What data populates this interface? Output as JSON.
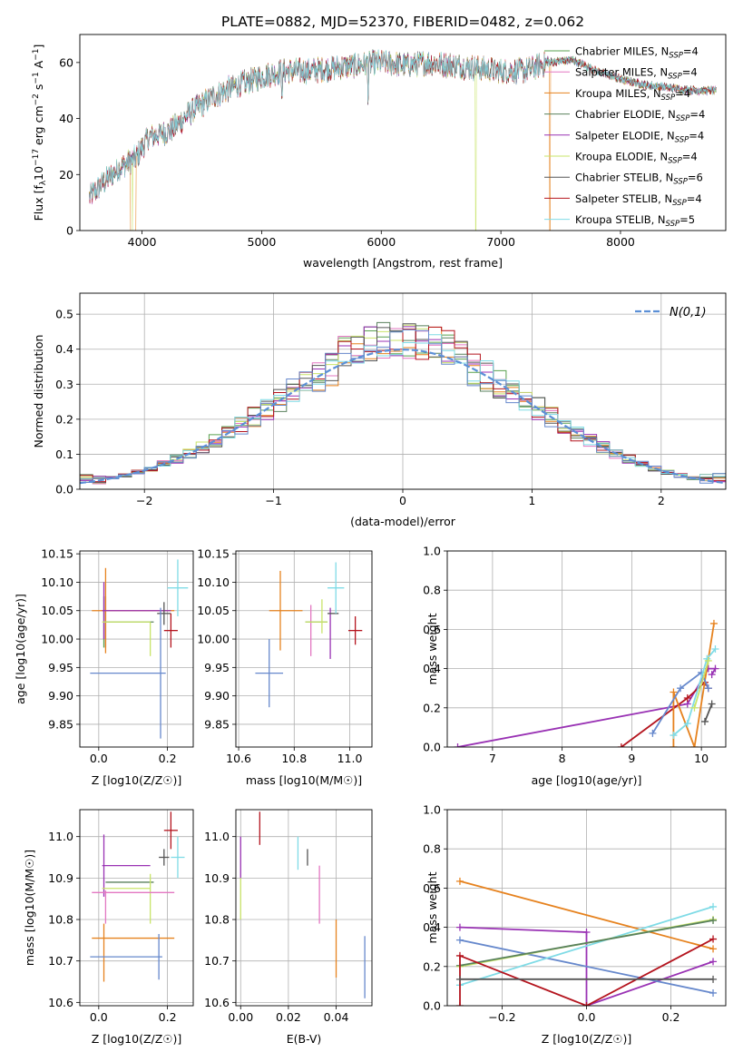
{
  "figure": {
    "title": "PLATE=0882, MJD=52370, FIBERID=0482, z=0.062"
  },
  "chart_data": [
    {
      "id": "spectrum",
      "type": "line",
      "xlabel": "wavelength [Angstrom, rest frame]",
      "ylabel": "Flux [f_λ 10^-17 erg cm^-2 s^-1 A^-1]",
      "xlim": [
        3480,
        8880
      ],
      "ylim": [
        0,
        70
      ],
      "xticks": [
        4000,
        5000,
        6000,
        7000,
        8000
      ],
      "yticks": [
        0,
        20,
        40,
        60
      ],
      "grid": false,
      "legend_position": "top-right",
      "continuum": {
        "x": [
          3560,
          3700,
          3800,
          3950,
          4050,
          4250,
          4400,
          4600,
          4800,
          5000,
          5200,
          5400,
          5600,
          5800,
          6000,
          6200,
          6400,
          6600,
          6800,
          7000,
          7200,
          7400,
          7600,
          7800,
          8000,
          8200,
          8400,
          8600,
          8800
        ],
        "y": [
          12,
          18,
          22,
          26,
          33,
          36,
          42,
          48,
          52,
          55,
          57,
          57,
          58,
          59,
          60,
          59,
          60,
          59,
          58,
          57,
          57,
          60,
          61,
          57,
          54,
          52,
          51,
          50,
          50
        ]
      },
      "series": [
        {
          "name": "Chabrier MILES, N_SSP=4",
          "color": "#59a14f"
        },
        {
          "name": "Salpeter MILES, N_SSP=4",
          "color": "#e377c2"
        },
        {
          "name": "Kroupa MILES, N_SSP=4",
          "color": "#e6821e"
        },
        {
          "name": "Chabrier ELODIE, N_SSP=4",
          "color": "#59815c"
        },
        {
          "name": "Salpeter ELODIE, N_SSP=4",
          "color": "#9932b4"
        },
        {
          "name": "Kroupa ELODIE, N_SSP=4",
          "color": "#c9e46a"
        },
        {
          "name": "Chabrier STELIB, N_SSP=6",
          "color": "#555555"
        },
        {
          "name": "Salpeter STELIB, N_SSP=4",
          "color": "#b4141e"
        },
        {
          "name": "Kroupa STELIB, N_SSP=5",
          "color": "#7fdbe6"
        }
      ]
    },
    {
      "id": "residuals",
      "type": "histogram",
      "xlabel": "(data-model)/error",
      "ylabel": "Normed distribution",
      "xlim": [
        -2.5,
        2.5
      ],
      "ylim": [
        0,
        0.56
      ],
      "xticks": [
        -2,
        -1,
        0,
        1,
        2
      ],
      "yticks": [
        0.0,
        0.1,
        0.2,
        0.3,
        0.4,
        0.5
      ],
      "grid": true,
      "bin_width": 0.1,
      "legend": {
        "label": "N(0,1)",
        "position": "top-right"
      },
      "reference_curve": "gaussian N(0,1)"
    },
    {
      "id": "age-vs-Z",
      "type": "scatter",
      "xlabel": "Z [log10(Z/Z☉)]",
      "ylabel": "age  [log10(age/yr)]",
      "xlim": [
        -0.055,
        0.275
      ],
      "ylim": [
        9.81,
        10.155
      ],
      "xticks": [
        0.0,
        0.2
      ],
      "yticks": [
        9.85,
        9.9,
        9.95,
        10.0,
        10.05,
        10.1,
        10.15
      ],
      "grid": true,
      "points": [
        {
          "x": 0.015,
          "xerr": 0.0,
          "y": 10.03,
          "yerr": 0.045,
          "color": "#59a14f"
        },
        {
          "x": 0.02,
          "xerr": 0.0,
          "y": 10.03,
          "yerr": 0.045,
          "color": "#e377c2"
        },
        {
          "x": 0.1,
          "xerr": 0.12,
          "y": 10.05,
          "yerr": 0.0,
          "color": "#e6821e"
        },
        {
          "x": 0.02,
          "xerr": 0.0,
          "y": 10.05,
          "yerr": 0.075,
          "color": "#e6821e"
        },
        {
          "x": 0.09,
          "xerr": 0.07,
          "y": 10.03,
          "yerr": 0.0,
          "color": "#59815c"
        },
        {
          "x": 0.11,
          "xerr": 0.1,
          "y": 10.05,
          "yerr": 0.0,
          "color": "#9932b4"
        },
        {
          "x": 0.015,
          "xerr": 0.0,
          "y": 10.05,
          "yerr": 0.05,
          "color": "#9932b4"
        },
        {
          "x": 0.08,
          "xerr": 0.07,
          "y": 10.03,
          "yerr": 0.0,
          "color": "#c9e46a"
        },
        {
          "x": 0.15,
          "xerr": 0.0,
          "y": 10.0,
          "yerr": 0.03,
          "color": "#c9e46a"
        },
        {
          "x": 0.19,
          "xerr": 0.02,
          "y": 10.045,
          "yerr": 0.02,
          "color": "#555555"
        },
        {
          "x": 0.21,
          "xerr": 0.02,
          "y": 10.015,
          "yerr": 0.03,
          "color": "#b4141e"
        },
        {
          "x": 0.23,
          "xerr": 0.03,
          "y": 10.09,
          "yerr": 0.05,
          "color": "#7fdbe6"
        },
        {
          "x": 0.085,
          "xerr": 0.11,
          "y": 9.94,
          "yerr": 0.0,
          "color": "#6688cc"
        },
        {
          "x": 0.18,
          "xerr": 0.0,
          "y": 9.94,
          "yerr": 0.115,
          "color": "#6688cc"
        }
      ]
    },
    {
      "id": "age-vs-mass",
      "type": "scatter",
      "xlabel": "mass [log10(M/M☉)]",
      "ylabel": "",
      "xlim": [
        10.59,
        11.08
      ],
      "ylim": [
        9.81,
        10.155
      ],
      "xticks": [
        10.6,
        10.8,
        11.0
      ],
      "yticks": [
        9.85,
        9.9,
        9.95,
        10.0,
        10.05,
        10.1,
        10.15
      ],
      "grid": true,
      "points": [
        {
          "x": 10.77,
          "xerr": 0.06,
          "y": 10.05,
          "yerr": 0.0,
          "color": "#e6821e"
        },
        {
          "x": 10.75,
          "xerr": 0.0,
          "y": 10.05,
          "yerr": 0.07,
          "color": "#e6821e"
        },
        {
          "x": 10.86,
          "xerr": 0.0,
          "y": 10.015,
          "yerr": 0.045,
          "color": "#e377c2"
        },
        {
          "x": 10.88,
          "xerr": 0.04,
          "y": 10.03,
          "yerr": 0.0,
          "color": "#59815c"
        },
        {
          "x": 10.88,
          "xerr": 0.04,
          "y": 10.03,
          "yerr": 0.0,
          "color": "#c9e46a"
        },
        {
          "x": 10.9,
          "xerr": 0.0,
          "y": 10.04,
          "yerr": 0.03,
          "color": "#c9e46a"
        },
        {
          "x": 10.93,
          "xerr": 0.0,
          "y": 10.01,
          "yerr": 0.045,
          "color": "#9932b4"
        },
        {
          "x": 10.94,
          "xerr": 0.02,
          "y": 10.045,
          "yerr": 0.0,
          "color": "#555555"
        },
        {
          "x": 10.95,
          "xerr": 0.03,
          "y": 10.09,
          "yerr": 0.045,
          "color": "#7fdbe6"
        },
        {
          "x": 11.02,
          "xerr": 0.025,
          "y": 10.015,
          "yerr": 0.025,
          "color": "#b4141e"
        },
        {
          "x": 10.71,
          "xerr": 0.05,
          "y": 9.94,
          "yerr": 0.0,
          "color": "#6688cc"
        },
        {
          "x": 10.71,
          "xerr": 0.0,
          "y": 9.94,
          "yerr": 0.06,
          "color": "#6688cc"
        }
      ]
    },
    {
      "id": "weight-vs-age",
      "type": "line",
      "xlabel": "age  [log10(age/yr)]",
      "ylabel": "mass weight",
      "xlim": [
        6.35,
        10.35
      ],
      "ylim": [
        0,
        1
      ],
      "xticks": [
        7,
        8,
        9,
        10
      ],
      "yticks": [
        0.0,
        0.2,
        0.4,
        0.6,
        0.8,
        1.0
      ],
      "grid": true,
      "series": [
        {
          "color": "#9932b4",
          "points": [
            [
              6.5,
              0.0
            ],
            [
              9.8,
              0.22
            ],
            [
              10.1,
              0.4
            ],
            [
              10.2,
              0.4
            ],
            [
              10.15,
              0.37
            ]
          ]
        },
        {
          "color": "#b4141e",
          "points": [
            [
              8.85,
              0.0
            ],
            [
              9.8,
              0.25
            ],
            [
              10.05,
              0.33
            ],
            [
              10.1,
              0.3
            ]
          ]
        },
        {
          "color": "#e6821e",
          "points": [
            [
              9.6,
              0.0
            ],
            [
              9.6,
              0.28
            ],
            [
              9.9,
              0.0
            ],
            [
              10.18,
              0.63
            ]
          ]
        },
        {
          "color": "#6688cc",
          "points": [
            [
              9.3,
              0.07
            ],
            [
              9.7,
              0.3
            ],
            [
              10.0,
              0.38
            ],
            [
              10.1,
              0.3
            ]
          ]
        },
        {
          "color": "#7fdbe6",
          "points": [
            [
              9.6,
              0.06
            ],
            [
              9.8,
              0.12
            ],
            [
              10.08,
              0.45
            ],
            [
              10.2,
              0.5
            ]
          ]
        },
        {
          "color": "#c9e46a",
          "points": [
            [
              9.9,
              0.2
            ],
            [
              10.1,
              0.44
            ]
          ]
        },
        {
          "color": "#555555",
          "points": [
            [
              10.05,
              0.13
            ],
            [
              10.15,
              0.22
            ]
          ]
        }
      ]
    },
    {
      "id": "mass-vs-Z",
      "type": "scatter",
      "xlabel": "Z [log10(Z/Z☉)]",
      "ylabel": "mass [log10(M/M☉)]",
      "xlim": [
        -0.055,
        0.275
      ],
      "ylim": [
        10.592,
        11.065
      ],
      "xticks": [
        0.0,
        0.2
      ],
      "yticks": [
        10.6,
        10.7,
        10.8,
        10.9,
        11.0
      ],
      "grid": true,
      "points": [
        {
          "x": 0.21,
          "xerr": 0.02,
          "y": 11.015,
          "yerr": 0.045,
          "color": "#b4141e"
        },
        {
          "x": 0.23,
          "xerr": 0.02,
          "y": 10.95,
          "yerr": 0.05,
          "color": "#7fdbe6"
        },
        {
          "x": 0.19,
          "xerr": 0.015,
          "y": 10.95,
          "yerr": 0.02,
          "color": "#555555"
        },
        {
          "x": 0.08,
          "xerr": 0.07,
          "y": 10.93,
          "yerr": 0.0,
          "color": "#9932b4"
        },
        {
          "x": 0.015,
          "xerr": 0.0,
          "y": 10.93,
          "yerr": 0.075,
          "color": "#9932b4"
        },
        {
          "x": 0.09,
          "xerr": 0.07,
          "y": 10.89,
          "yerr": 0.0,
          "color": "#59815c"
        },
        {
          "x": 0.15,
          "xerr": 0.0,
          "y": 10.85,
          "yerr": 0.06,
          "color": "#c9e46a"
        },
        {
          "x": 0.08,
          "xerr": 0.07,
          "y": 10.875,
          "yerr": 0.0,
          "color": "#c9e46a"
        },
        {
          "x": 0.1,
          "xerr": 0.12,
          "y": 10.865,
          "yerr": 0.0,
          "color": "#e377c2"
        },
        {
          "x": 0.02,
          "xerr": 0.0,
          "y": 10.83,
          "yerr": 0.04,
          "color": "#e377c2"
        },
        {
          "x": 0.1,
          "xerr": 0.12,
          "y": 10.755,
          "yerr": 0.0,
          "color": "#e6821e"
        },
        {
          "x": 0.015,
          "xerr": 0.0,
          "y": 10.72,
          "yerr": 0.07,
          "color": "#e6821e"
        },
        {
          "x": 0.08,
          "xerr": 0.105,
          "y": 10.71,
          "yerr": 0.0,
          "color": "#6688cc"
        },
        {
          "x": 0.175,
          "xerr": 0.0,
          "y": 10.71,
          "yerr": 0.055,
          "color": "#6688cc"
        }
      ]
    },
    {
      "id": "mass-vs-EBV",
      "type": "scatter",
      "xlabel": "E(B-V)",
      "ylabel": "",
      "xlim": [
        -0.002,
        0.055
      ],
      "ylim": [
        10.592,
        11.065
      ],
      "xticks": [
        0.0,
        0.02,
        0.04
      ],
      "yticks": [
        10.6,
        10.7,
        10.8,
        10.9,
        11.0
      ],
      "grid": true,
      "points": [
        {
          "x": 0.008,
          "xerr": 0.0,
          "y": 11.02,
          "yerr": 0.04,
          "color": "#b4141e"
        },
        {
          "x": 0.024,
          "xerr": 0.0,
          "y": 10.96,
          "yerr": 0.04,
          "color": "#7fdbe6"
        },
        {
          "x": 0.028,
          "xerr": 0.0,
          "y": 10.95,
          "yerr": 0.02,
          "color": "#555555"
        },
        {
          "x": 0.0,
          "xerr": 0.0,
          "y": 10.95,
          "yerr": 0.05,
          "color": "#9932b4"
        },
        {
          "x": 0.0,
          "xerr": 0.0,
          "y": 10.85,
          "yerr": 0.05,
          "color": "#c9e46a"
        },
        {
          "x": 0.033,
          "xerr": 0.0,
          "y": 10.86,
          "yerr": 0.07,
          "color": "#e377c2"
        },
        {
          "x": 0.04,
          "xerr": 0.0,
          "y": 10.73,
          "yerr": 0.07,
          "color": "#e6821e"
        },
        {
          "x": 0.052,
          "xerr": 0.0,
          "y": 10.685,
          "yerr": 0.075,
          "color": "#6688cc"
        }
      ]
    },
    {
      "id": "weight-vs-Z",
      "type": "line",
      "xlabel": "Z [log10(Z/Z☉)]",
      "ylabel": "mass weight",
      "xlim": [
        -0.33,
        0.33
      ],
      "ylim": [
        0,
        1
      ],
      "xticks": [
        -0.2,
        0.0,
        0.2
      ],
      "yticks": [
        0.0,
        0.2,
        0.4,
        0.6,
        0.8,
        1.0
      ],
      "grid": true,
      "series": [
        {
          "color": "#e6821e",
          "points": [
            [
              -0.3,
              0.635
            ],
            [
              0.3,
              0.29
            ]
          ]
        },
        {
          "color": "#9932b4",
          "points": [
            [
              -0.3,
              0.4
            ],
            [
              0.0,
              0.375
            ],
            [
              0.0,
              0.0
            ],
            [
              0.3,
              0.225
            ]
          ]
        },
        {
          "color": "#6688cc",
          "points": [
            [
              -0.3,
              0.335
            ],
            [
              0.3,
              0.065
            ]
          ]
        },
        {
          "color": "#7fdbe6",
          "points": [
            [
              -0.3,
              0.105
            ],
            [
              0.3,
              0.505
            ]
          ]
        },
        {
          "color": "#c9e46a",
          "points": [
            [
              -0.3,
              0.2
            ],
            [
              0.3,
              0.44
            ]
          ]
        },
        {
          "color": "#59815c",
          "points": [
            [
              -0.3,
              0.205
            ],
            [
              0.3,
              0.435
            ]
          ]
        },
        {
          "color": "#b4141e",
          "points": [
            [
              -0.3,
              0.0
            ],
            [
              -0.3,
              0.255
            ],
            [
              0.0,
              0.0
            ],
            [
              0.3,
              0.34
            ]
          ]
        },
        {
          "color": "#555555",
          "points": [
            [
              -0.3,
              0.135
            ],
            [
              0.3,
              0.135
            ]
          ]
        }
      ]
    }
  ]
}
